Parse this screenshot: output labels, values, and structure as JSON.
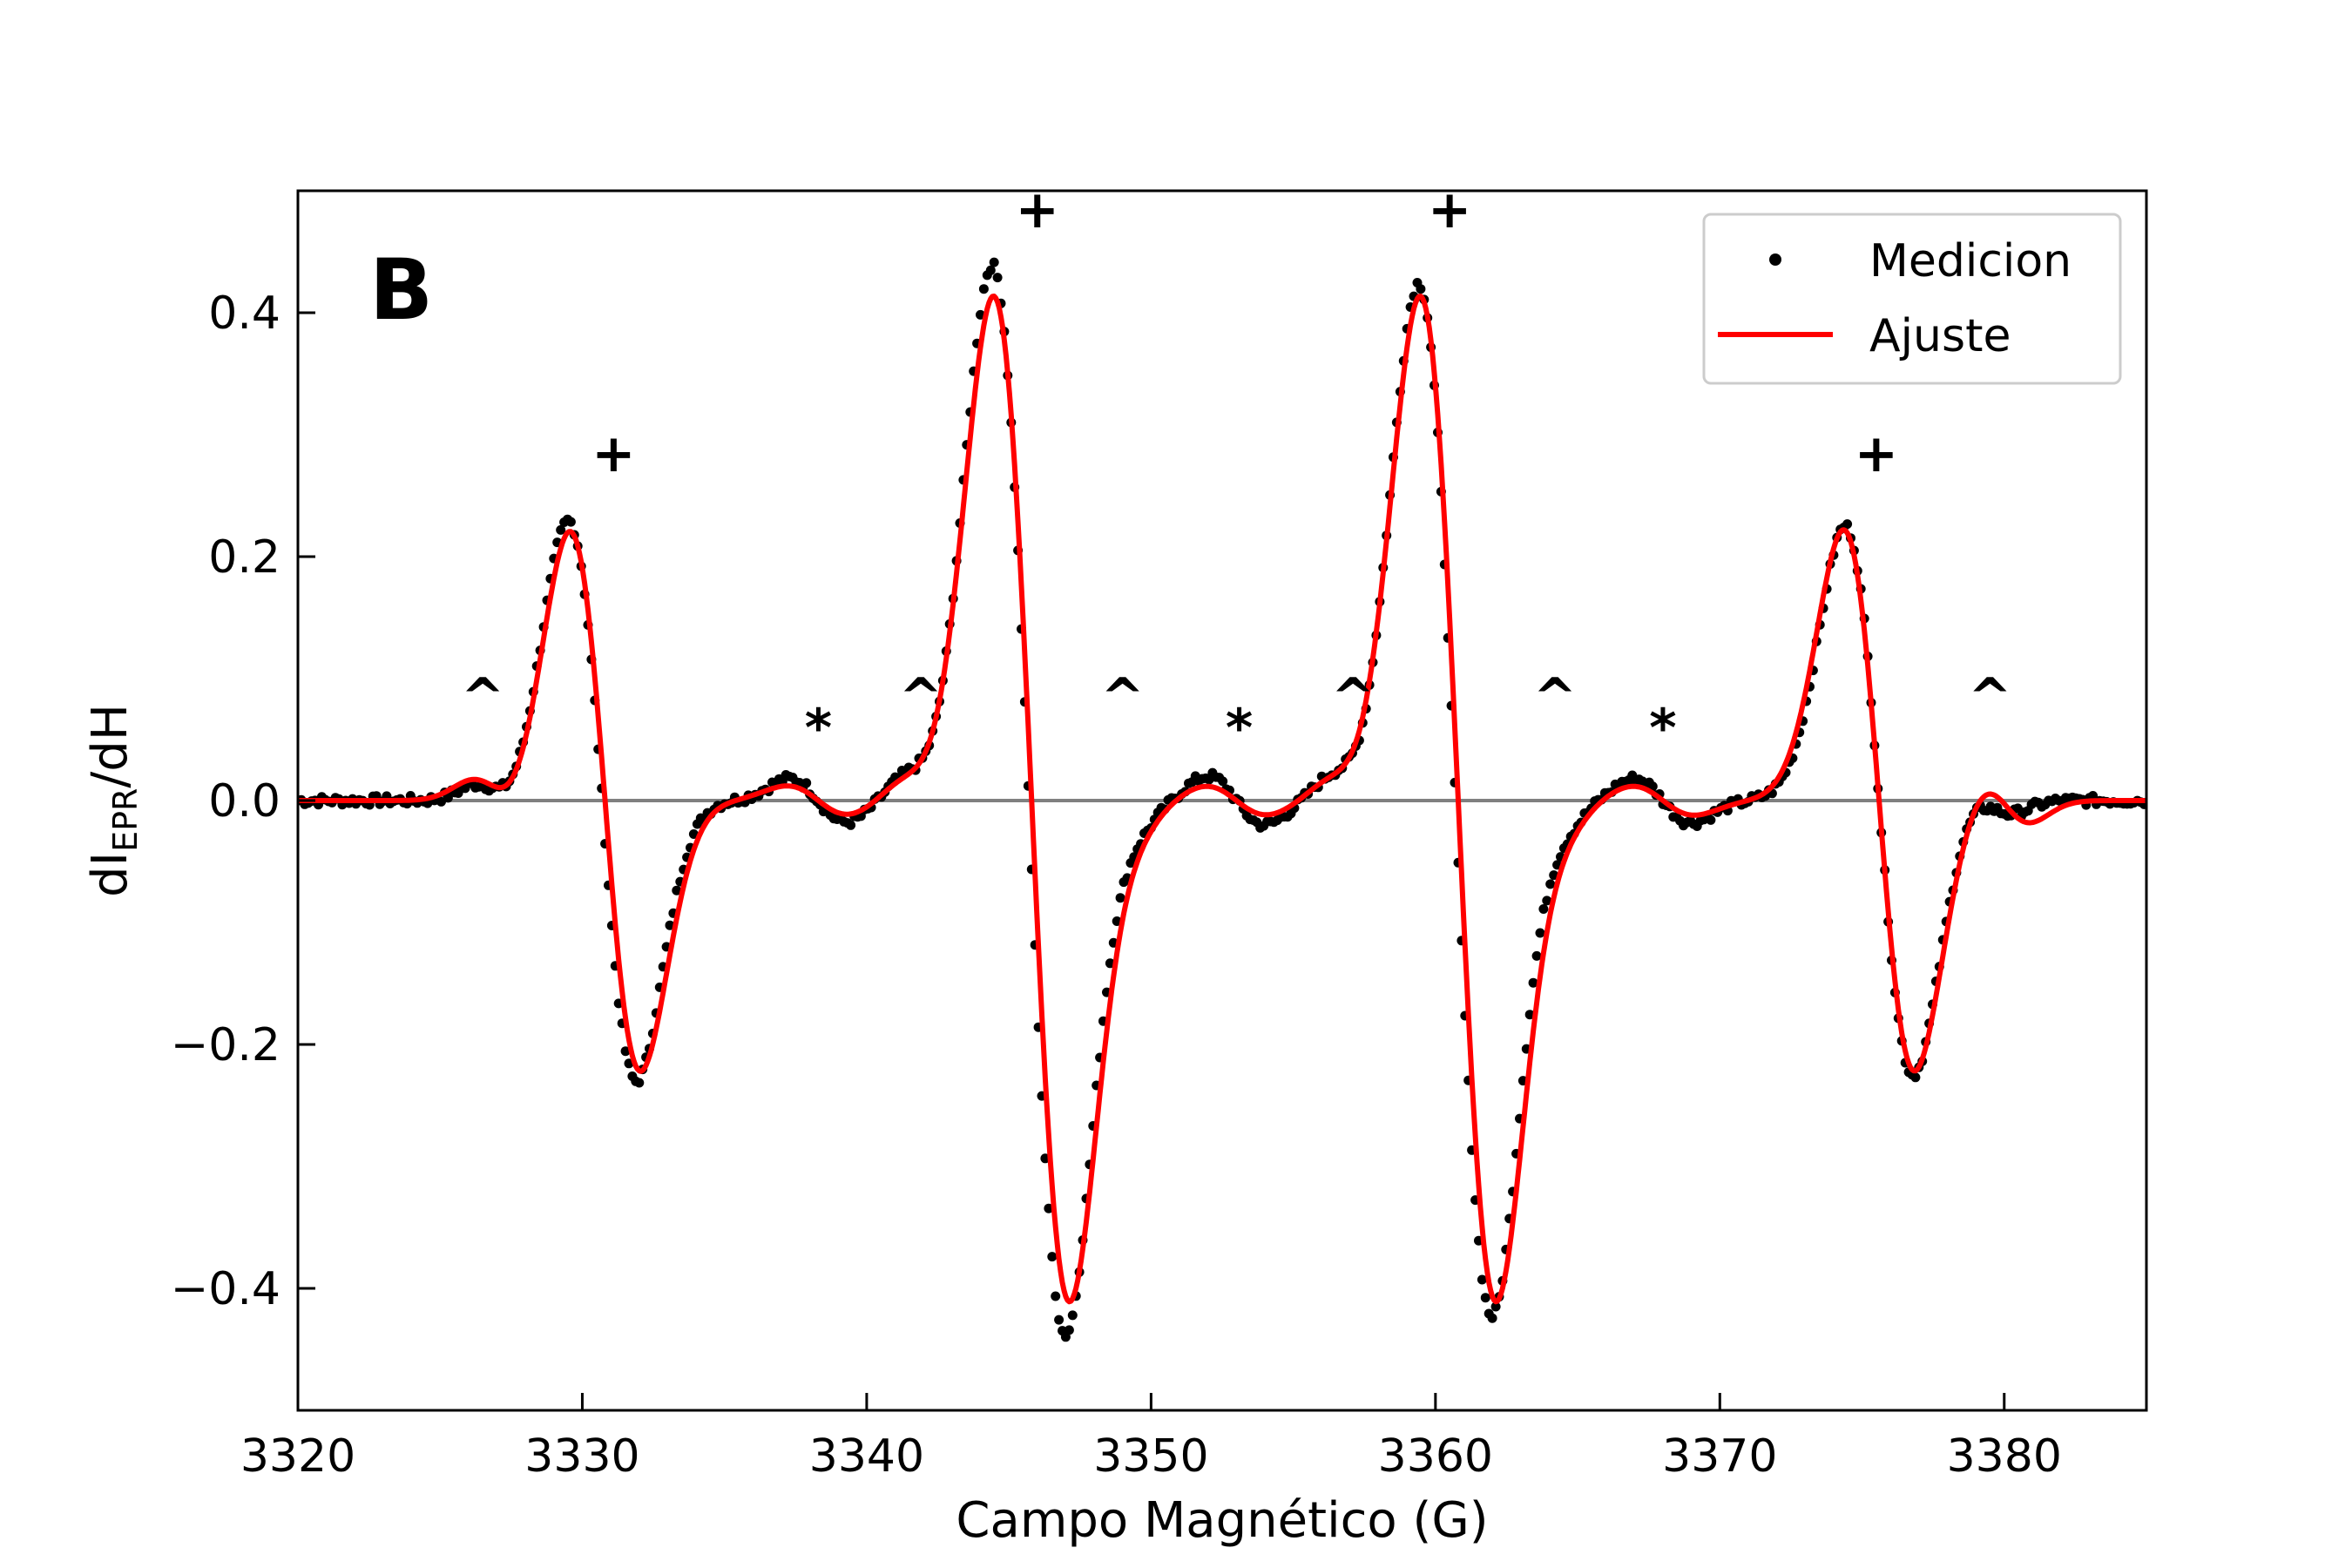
{
  "chart_data": {
    "type": "line",
    "panel_label": "B",
    "xlabel": "Campo Magnético (G)",
    "ylabel": {
      "main": "dI",
      "sub": "EPR",
      "tail": "/dH"
    },
    "xlim": [
      3320,
      3385
    ],
    "ylim": [
      -0.5,
      0.5
    ],
    "xticks": [
      3320,
      3330,
      3340,
      3350,
      3360,
      3370,
      3380
    ],
    "yticks": [
      -0.4,
      -0.2,
      0.0,
      0.2,
      0.4
    ],
    "ytick_labels": [
      "−0.4",
      "−0.2",
      "0.0",
      "0.2",
      "0.4"
    ],
    "grid": false,
    "baseline": {
      "y": 0.0,
      "color": "#808080"
    },
    "legend": {
      "placement": "top-right",
      "entries": [
        {
          "label": "Medicion",
          "style": "dots",
          "color": "#000000"
        },
        {
          "label": "Ajuste",
          "style": "line",
          "color": "#ff0000"
        }
      ]
    },
    "series": [
      {
        "name": "Medicion",
        "style": "dots",
        "color": "#000000",
        "model": {
          "main_lines": [
            {
              "center": 3330.7,
              "amplitude": 0.23,
              "width": 1.2
            },
            {
              "center": 3345.7,
              "amplitude": 0.44,
              "width": 1.3
            },
            {
              "center": 3360.7,
              "amplitude": 0.425,
              "width": 1.3
            },
            {
              "center": 3375.6,
              "amplitude": 0.225,
              "width": 1.2
            }
          ],
          "minor_lines": [
            {
              "center": 3327.0,
              "amplitude": 0.012,
              "width": 0.8
            },
            {
              "center": 3338.3,
              "amplitude": 0.018,
              "width": 1.0
            },
            {
              "center": 3342.0,
              "amplitude": 0.015,
              "width": 0.8
            },
            {
              "center": 3349.0,
              "amplitude": 0.012,
              "width": 0.8
            },
            {
              "center": 3353.0,
              "amplitude": 0.02,
              "width": 1.0
            },
            {
              "center": 3357.0,
              "amplitude": 0.015,
              "width": 0.8
            },
            {
              "center": 3364.0,
              "amplitude": 0.012,
              "width": 0.8
            },
            {
              "center": 3368.0,
              "amplitude": 0.018,
              "width": 1.0
            },
            {
              "center": 3379.5,
              "amplitude": 0.01,
              "width": 0.8
            }
          ],
          "x_start": 3320,
          "x_end": 3385,
          "step": 0.12
        }
      },
      {
        "name": "Ajuste",
        "style": "line",
        "color": "#ff0000",
        "model": {
          "main_lines": [
            {
              "center": 3330.8,
              "amplitude": 0.222,
              "width": 1.25
            },
            {
              "center": 3345.8,
              "amplitude": 0.415,
              "width": 1.35
            },
            {
              "center": 3360.8,
              "amplitude": 0.415,
              "width": 1.35
            },
            {
              "center": 3375.6,
              "amplitude": 0.222,
              "width": 1.25
            }
          ],
          "minor_lines": [
            {
              "center": 3327.0,
              "amplitude": 0.016,
              "width": 0.9
            },
            {
              "center": 3338.3,
              "amplitude": 0.012,
              "width": 1.1
            },
            {
              "center": 3342.0,
              "amplitude": 0.012,
              "width": 0.9
            },
            {
              "center": 3349.0,
              "amplitude": 0.01,
              "width": 0.9
            },
            {
              "center": 3353.0,
              "amplitude": 0.012,
              "width": 1.1
            },
            {
              "center": 3357.0,
              "amplitude": 0.012,
              "width": 0.9
            },
            {
              "center": 3364.0,
              "amplitude": 0.01,
              "width": 0.9
            },
            {
              "center": 3368.0,
              "amplitude": 0.012,
              "width": 1.1
            },
            {
              "center": 3380.0,
              "amplitude": 0.018,
              "width": 0.9
            }
          ],
          "x_start": 3320,
          "x_end": 3385,
          "step": 0.06
        }
      }
    ],
    "annotations": [
      {
        "text": "+",
        "x": 3331.1,
        "y": 0.27
      },
      {
        "text": "+",
        "x": 3346.0,
        "y": 0.47
      },
      {
        "text": "+",
        "x": 3360.5,
        "y": 0.47
      },
      {
        "text": "+",
        "x": 3375.5,
        "y": 0.27
      },
      {
        "text": "^",
        "x": 3326.5,
        "y": 0.07
      },
      {
        "text": "^",
        "x": 3341.9,
        "y": 0.07
      },
      {
        "text": "^",
        "x": 3349.0,
        "y": 0.07
      },
      {
        "text": "^",
        "x": 3357.1,
        "y": 0.07
      },
      {
        "text": "^",
        "x": 3364.2,
        "y": 0.07
      },
      {
        "text": "^",
        "x": 3379.5,
        "y": 0.07
      },
      {
        "text": "*",
        "x": 3338.3,
        "y": 0.045
      },
      {
        "text": "*",
        "x": 3353.1,
        "y": 0.045
      },
      {
        "text": "*",
        "x": 3368.0,
        "y": 0.045
      }
    ]
  }
}
